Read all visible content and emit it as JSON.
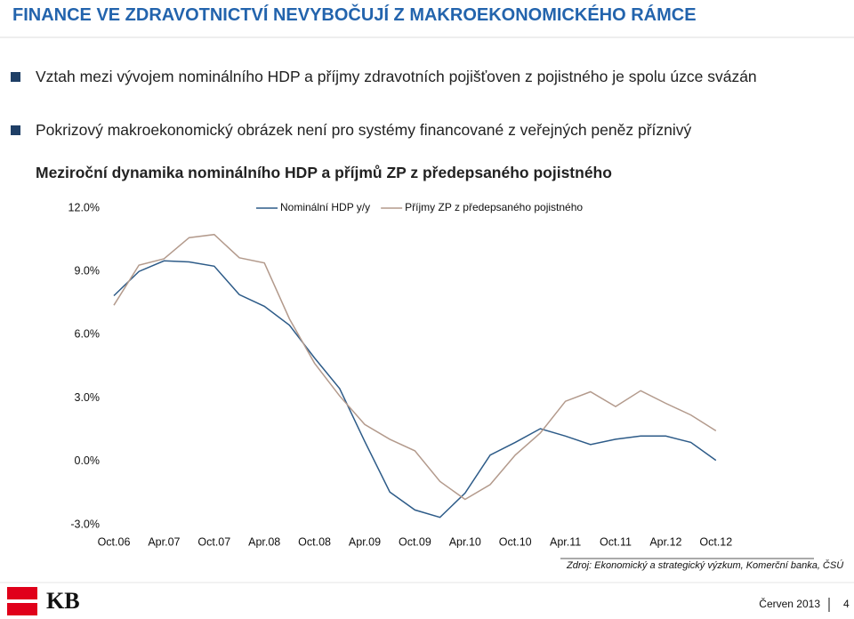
{
  "header": {
    "title": "FINANCE VE ZDRAVOTNICTVÍ NEVYBOČUJÍ Z MAKROEKONOMICKÉHO RÁMCE"
  },
  "bullets": [
    "Vztah mezi vývojem nominálního HDP a příjmy zdravotních pojišťoven z pojistného je spolu úzce svázán",
    "Pokrizový makroekonomický obrázek není pro systémy financované z veřejných peněz příznivý"
  ],
  "chart_data": {
    "type": "line",
    "title": "Meziroční dynamika nominálního HDP a příjmů ZP z předepsaného pojistného",
    "categories": [
      "Oct.06",
      null,
      "Apr.07",
      null,
      "Oct.07",
      null,
      "Apr.08",
      null,
      "Oct.08",
      null,
      "Apr.09",
      null,
      "Oct.09",
      null,
      "Apr.10",
      null,
      "Oct.10",
      null,
      "Apr.11",
      null,
      "Oct.11",
      null,
      "Apr.12",
      null,
      "Oct.12"
    ],
    "series": [
      {
        "name": "Nominální HDP y/y",
        "color": "#2d5b88",
        "values": [
          7.85,
          9.0,
          9.5,
          9.45,
          9.25,
          7.9,
          7.35,
          6.45,
          4.9,
          3.45,
          0.95,
          -1.45,
          -2.3,
          -2.65,
          -1.5,
          0.3,
          0.9,
          1.55,
          1.2,
          0.8,
          1.05,
          1.2,
          1.2,
          0.9,
          0.05
        ]
      },
      {
        "name": "Příjmy ZP z předepsaného pojistného",
        "color": "#b39a8c",
        "values": [
          7.4,
          9.3,
          9.6,
          10.6,
          10.75,
          9.65,
          9.4,
          6.75,
          4.65,
          3.1,
          1.75,
          1.05,
          0.5,
          -0.95,
          -1.8,
          -1.1,
          0.3,
          1.35,
          2.85,
          3.3,
          2.6,
          3.35,
          2.75,
          2.2,
          1.45
        ]
      }
    ],
    "ylim": [
      -3,
      12
    ],
    "yticks": [
      {
        "value": 12,
        "label": "12.0%"
      },
      {
        "value": 9,
        "label": "9.0%"
      },
      {
        "value": 6,
        "label": "6.0%"
      },
      {
        "value": 3,
        "label": "3.0%"
      },
      {
        "value": 0,
        "label": "0.0%"
      },
      {
        "value": -3,
        "label": "-3.0%"
      }
    ],
    "grid": false,
    "legend": "top",
    "source": "Zdroj: Ekonomický a strategický výzkum, Komerční banka, ČSÚ"
  },
  "footer": {
    "logo": "KB",
    "date": "Červen 2013",
    "page": "4"
  }
}
